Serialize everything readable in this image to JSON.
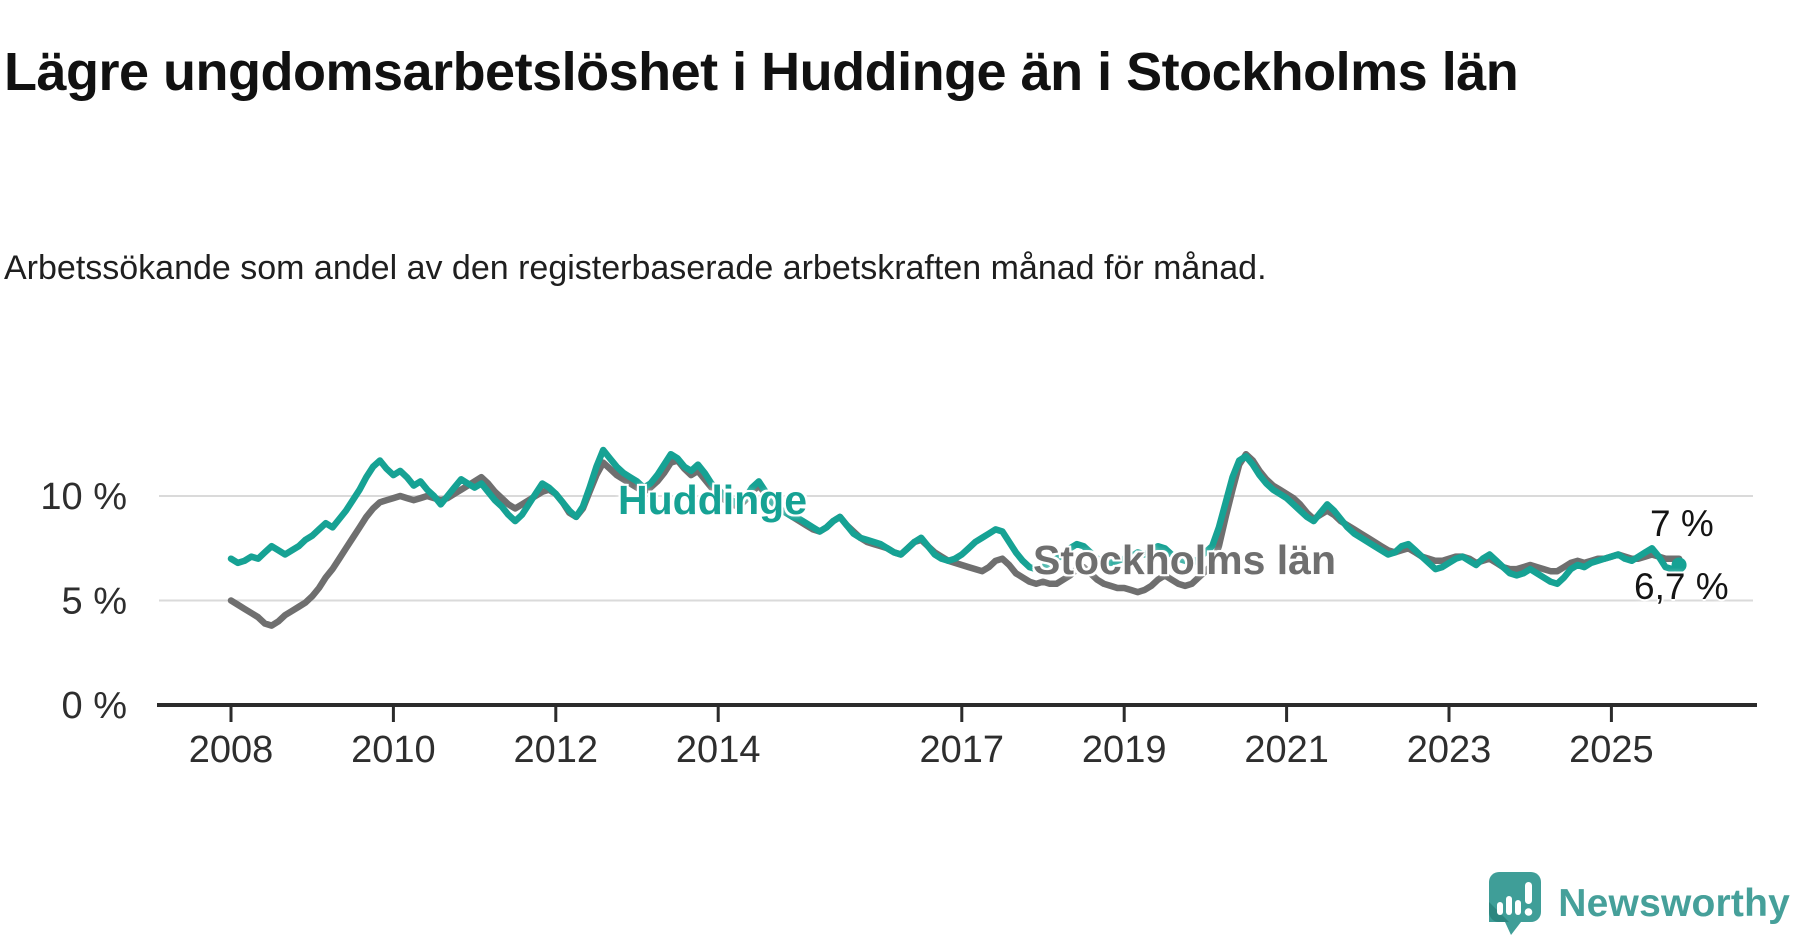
{
  "header": {
    "title": "Lägre ungdomsarbetslöshet i Huddinge än i Stockholms län",
    "subtitle": "Arbetssökande som andel av den registerbaserade arbetskraften månad för månad."
  },
  "chart_data": {
    "type": "line",
    "unit": "percent",
    "x_start": "2008-01",
    "x_end": "2025-11",
    "points_per_year": 12,
    "ylim": [
      0,
      13
    ],
    "grid": "horizontal",
    "yticks": [
      {
        "value": 0,
        "label": "0 %"
      },
      {
        "value": 5,
        "label": "5 %"
      },
      {
        "value": 10,
        "label": "10 %"
      }
    ],
    "xticks": [
      {
        "year": 2008,
        "label": "2008"
      },
      {
        "year": 2010,
        "label": "2010"
      },
      {
        "year": 2012,
        "label": "2012"
      },
      {
        "year": 2014,
        "label": "2014"
      },
      {
        "year": 2017,
        "label": "2017"
      },
      {
        "year": 2019,
        "label": "2019"
      },
      {
        "year": 2021,
        "label": "2021"
      },
      {
        "year": 2023,
        "label": "2023"
      },
      {
        "year": 2025,
        "label": "2025"
      }
    ],
    "series": [
      {
        "name": "Huddinge",
        "color": "#16A294",
        "end_label": "6,7 %",
        "end_value": 6.7,
        "end_dot": true,
        "values": [
          7.0,
          6.8,
          6.9,
          7.1,
          7.0,
          7.3,
          7.6,
          7.4,
          7.2,
          7.4,
          7.6,
          7.9,
          8.1,
          8.4,
          8.7,
          8.5,
          8.9,
          9.3,
          9.8,
          10.3,
          10.9,
          11.4,
          11.7,
          11.3,
          11.0,
          11.2,
          10.9,
          10.5,
          10.7,
          10.3,
          10.0,
          9.6,
          10.0,
          10.4,
          10.8,
          10.6,
          10.4,
          10.6,
          10.2,
          9.8,
          9.5,
          9.1,
          8.8,
          9.1,
          9.6,
          10.1,
          10.6,
          10.4,
          10.1,
          9.7,
          9.3,
          9.0,
          9.5,
          10.4,
          11.4,
          12.2,
          11.8,
          11.4,
          11.1,
          10.9,
          10.7,
          10.4,
          10.6,
          11.0,
          11.5,
          12.0,
          11.8,
          11.4,
          11.2,
          11.5,
          11.1,
          10.6,
          10.3,
          10.0,
          9.8,
          9.6,
          9.9,
          10.4,
          10.7,
          10.2,
          9.7,
          9.4,
          9.2,
          9.0,
          8.9,
          8.7,
          8.5,
          8.3,
          8.5,
          8.8,
          9.0,
          8.6,
          8.2,
          8.0,
          7.9,
          7.8,
          7.7,
          7.5,
          7.3,
          7.2,
          7.5,
          7.8,
          8.0,
          7.6,
          7.2,
          7.0,
          6.9,
          7.0,
          7.2,
          7.5,
          7.8,
          8.0,
          8.2,
          8.4,
          8.3,
          7.8,
          7.3,
          6.9,
          6.6,
          6.5,
          6.6,
          6.8,
          7.0,
          7.2,
          7.5,
          7.7,
          7.6,
          7.3,
          7.0,
          6.9,
          6.8,
          6.9,
          7.0,
          7.1,
          7.3,
          7.2,
          7.4,
          7.6,
          7.5,
          7.2,
          7.0,
          6.9,
          6.8,
          7.0,
          7.3,
          7.6,
          8.5,
          9.7,
          10.9,
          11.7,
          11.9,
          11.5,
          11.0,
          10.6,
          10.3,
          10.1,
          9.9,
          9.6,
          9.3,
          9.0,
          8.8,
          9.2,
          9.6,
          9.3,
          8.9,
          8.5,
          8.2,
          8.0,
          7.8,
          7.6,
          7.4,
          7.2,
          7.3,
          7.6,
          7.7,
          7.4,
          7.1,
          6.8,
          6.5,
          6.6,
          6.8,
          7.0,
          7.1,
          6.9,
          6.7,
          7.0,
          7.2,
          6.9,
          6.6,
          6.3,
          6.2,
          6.3,
          6.5,
          6.3,
          6.1,
          5.9,
          5.8,
          6.1,
          6.5,
          6.7,
          6.6,
          6.8,
          6.9,
          7.0,
          7.1,
          7.2,
          7.0,
          6.9,
          7.1,
          7.3,
          7.5,
          7.1,
          6.6,
          6.5,
          6.7
        ]
      },
      {
        "name": "Stockholms län",
        "color": "#6F6F6F",
        "end_label": "7 %",
        "end_value": 7.0,
        "end_dot": false,
        "values": [
          5.0,
          4.8,
          4.6,
          4.4,
          4.2,
          3.9,
          3.8,
          4.0,
          4.3,
          4.5,
          4.7,
          4.9,
          5.2,
          5.6,
          6.1,
          6.5,
          7.0,
          7.5,
          8.0,
          8.5,
          9.0,
          9.4,
          9.7,
          9.8,
          9.9,
          10.0,
          9.9,
          9.8,
          9.9,
          10.0,
          9.9,
          9.8,
          9.9,
          10.1,
          10.3,
          10.5,
          10.7,
          10.9,
          10.6,
          10.2,
          9.9,
          9.6,
          9.4,
          9.6,
          9.8,
          10.0,
          10.2,
          10.3,
          10.1,
          9.7,
          9.2,
          9.0,
          9.4,
          10.2,
          11.0,
          11.6,
          11.3,
          11.0,
          10.8,
          10.6,
          10.4,
          10.2,
          10.4,
          10.7,
          11.1,
          11.6,
          11.7,
          11.3,
          11.0,
          11.2,
          10.8,
          10.4,
          10.1,
          9.8,
          9.6,
          9.5,
          9.8,
          10.2,
          10.5,
          10.1,
          9.7,
          9.4,
          9.2,
          9.0,
          8.8,
          8.6,
          8.4,
          8.3,
          8.5,
          8.8,
          9.0,
          8.6,
          8.3,
          8.0,
          7.8,
          7.7,
          7.6,
          7.5,
          7.3,
          7.2,
          7.5,
          7.8,
          7.9,
          7.6,
          7.3,
          7.1,
          6.9,
          6.8,
          6.7,
          6.6,
          6.5,
          6.4,
          6.6,
          6.9,
          7.0,
          6.7,
          6.3,
          6.1,
          5.9,
          5.8,
          5.9,
          5.8,
          5.8,
          6.0,
          6.2,
          6.5,
          6.6,
          6.3,
          6.0,
          5.8,
          5.7,
          5.6,
          5.6,
          5.5,
          5.4,
          5.5,
          5.7,
          6.0,
          6.2,
          6.0,
          5.8,
          5.7,
          5.8,
          6.1,
          6.4,
          6.7,
          7.6,
          9.0,
          10.3,
          11.5,
          12.0,
          11.7,
          11.2,
          10.8,
          10.5,
          10.3,
          10.1,
          9.9,
          9.6,
          9.2,
          8.9,
          9.1,
          9.3,
          9.1,
          8.8,
          8.6,
          8.4,
          8.2,
          8.0,
          7.8,
          7.6,
          7.4,
          7.3,
          7.4,
          7.5,
          7.3,
          7.1,
          7.0,
          6.9,
          6.9,
          7.0,
          7.1,
          7.1,
          7.0,
          6.8,
          6.9,
          7.0,
          6.8,
          6.6,
          6.5,
          6.5,
          6.6,
          6.7,
          6.6,
          6.5,
          6.4,
          6.4,
          6.6,
          6.8,
          6.9,
          6.8,
          6.9,
          7.0,
          7.0,
          7.1,
          7.2,
          7.1,
          7.0,
          7.0,
          7.1,
          7.2,
          7.1,
          7.0,
          7.0,
          7.0
        ]
      }
    ],
    "axis_colors": {
      "grid": "#DADADA",
      "axis": "#2B2B2B",
      "tick_text": "#2E2E2E"
    }
  },
  "annotations": {
    "huddinge_label": "Huddinge",
    "stockholm_label": "Stockholms län",
    "end_value_top": "7 %",
    "end_value_bottom": "6,7 %"
  },
  "branding": {
    "name": "Newsworthy",
    "icon": "newsworthy-logo-icon",
    "color": "#46A09A"
  }
}
